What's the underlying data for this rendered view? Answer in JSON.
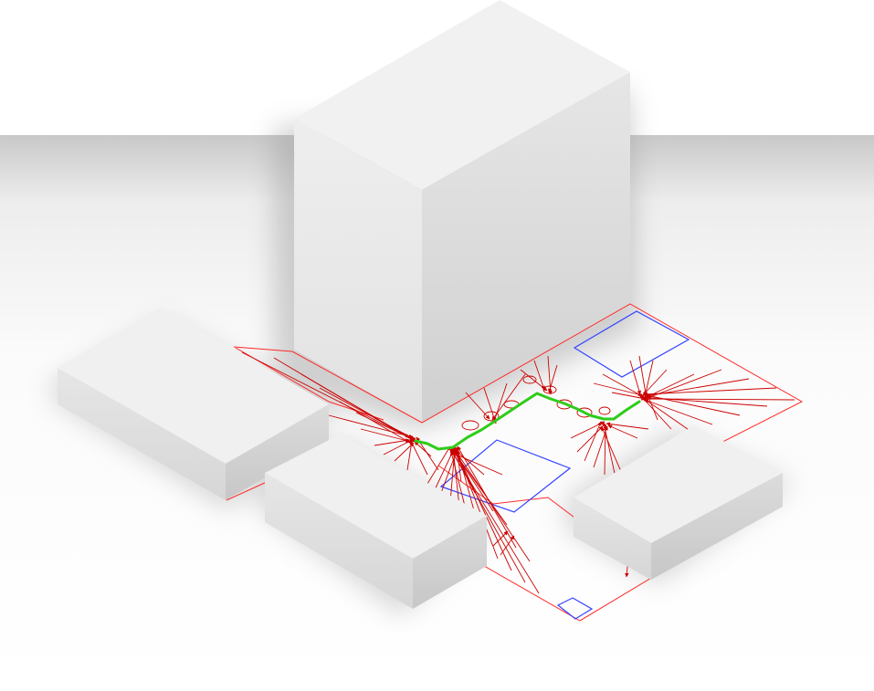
{
  "colors": {
    "background": "#ffffff",
    "ground_shadow": "#cfcfcf",
    "box_top": "#f0f0f0",
    "box_left": "#e3e3e3",
    "box_right": "#d2d2d2",
    "field_boundary": "#ff2a2a",
    "vector_arrows": "#cc0000",
    "zones": "#3344ff",
    "path": "#2ecc1a"
  },
  "scene": {
    "buildings": [
      "tower",
      "block-left",
      "block-center",
      "block-right"
    ],
    "zones": [
      "zone-top-right",
      "zone-center",
      "zone-bottom"
    ],
    "sinks": [
      "sink-left",
      "sink-mid",
      "sink-right",
      "sink-far-right"
    ],
    "path": "green-polyline"
  }
}
